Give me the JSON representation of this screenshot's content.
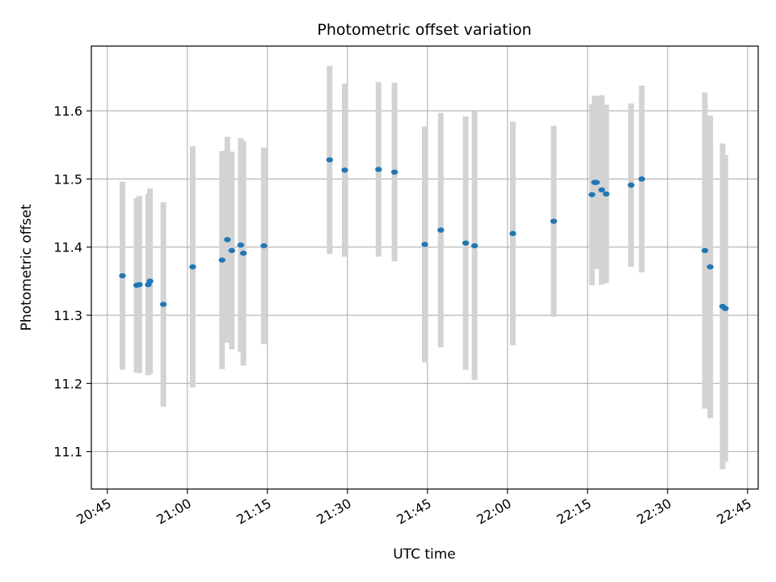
{
  "chart_data": {
    "type": "scatter",
    "title": "Photometric offset variation",
    "xlabel": "UTC time",
    "ylabel": "Photometric offset",
    "grid": true,
    "xlim": [
      "20:42",
      "22:47"
    ],
    "ylim": [
      11.045,
      11.695
    ],
    "x_ticks": [
      "20:45",
      "21:00",
      "21:15",
      "21:30",
      "21:45",
      "22:00",
      "22:15",
      "22:30",
      "22:45"
    ],
    "y_ticks": [
      11.1,
      11.2,
      11.3,
      11.4,
      11.5,
      11.6
    ],
    "y_tick_labels": [
      "11.1",
      "11.2",
      "11.3",
      "11.4",
      "11.5",
      "11.6"
    ],
    "marker_color": "#1f77b4",
    "errorbar_color": "#d3d3d3",
    "points": [
      {
        "x": "20:47:50",
        "y": 11.358,
        "yerr": 0.138
      },
      {
        "x": "20:50:30",
        "y": 11.344,
        "yerr": 0.128
      },
      {
        "x": "20:51:00",
        "y": 11.345,
        "yerr": 0.13
      },
      {
        "x": "20:52:40",
        "y": 11.345,
        "yerr": 0.133
      },
      {
        "x": "20:53:00",
        "y": 11.35,
        "yerr": 0.136
      },
      {
        "x": "20:55:30",
        "y": 11.316,
        "yerr": 0.15
      },
      {
        "x": "21:01:00",
        "y": 11.371,
        "yerr": 0.177
      },
      {
        "x": "21:06:30",
        "y": 11.381,
        "yerr": 0.16
      },
      {
        "x": "21:07:30",
        "y": 11.411,
        "yerr": 0.151
      },
      {
        "x": "21:08:20",
        "y": 11.395,
        "yerr": 0.145
      },
      {
        "x": "21:10:00",
        "y": 11.403,
        "yerr": 0.157
      },
      {
        "x": "21:10:30",
        "y": 11.391,
        "yerr": 0.165
      },
      {
        "x": "21:14:20",
        "y": 11.402,
        "yerr": 0.144
      },
      {
        "x": "21:26:40",
        "y": 11.528,
        "yerr": 0.138
      },
      {
        "x": "21:29:30",
        "y": 11.513,
        "yerr": 0.127
      },
      {
        "x": "21:35:50",
        "y": 11.514,
        "yerr": 0.128
      },
      {
        "x": "21:38:50",
        "y": 11.51,
        "yerr": 0.131
      },
      {
        "x": "21:44:30",
        "y": 11.404,
        "yerr": 0.173
      },
      {
        "x": "21:47:30",
        "y": 11.425,
        "yerr": 0.172
      },
      {
        "x": "21:52:10",
        "y": 11.406,
        "yerr": 0.186
      },
      {
        "x": "21:53:50",
        "y": 11.402,
        "yerr": 0.197
      },
      {
        "x": "22:01:00",
        "y": 11.42,
        "yerr": 0.164
      },
      {
        "x": "22:08:40",
        "y": 11.438,
        "yerr": 0.14
      },
      {
        "x": "22:15:50",
        "y": 11.477,
        "yerr": 0.133
      },
      {
        "x": "22:16:20",
        "y": 11.495,
        "yerr": 0.127
      },
      {
        "x": "22:16:40",
        "y": 11.495,
        "yerr": 0.127
      },
      {
        "x": "22:17:40",
        "y": 11.484,
        "yerr": 0.139
      },
      {
        "x": "22:18:30",
        "y": 11.478,
        "yerr": 0.131
      },
      {
        "x": "22:23:10",
        "y": 11.491,
        "yerr": 0.12
      },
      {
        "x": "22:25:10",
        "y": 11.5,
        "yerr": 0.137
      },
      {
        "x": "22:37:00",
        "y": 11.395,
        "yerr": 0.232
      },
      {
        "x": "22:38:00",
        "y": 11.371,
        "yerr": 0.222
      },
      {
        "x": "22:40:20",
        "y": 11.313,
        "yerr": 0.239
      },
      {
        "x": "22:40:50",
        "y": 11.31,
        "yerr": 0.225
      }
    ]
  }
}
